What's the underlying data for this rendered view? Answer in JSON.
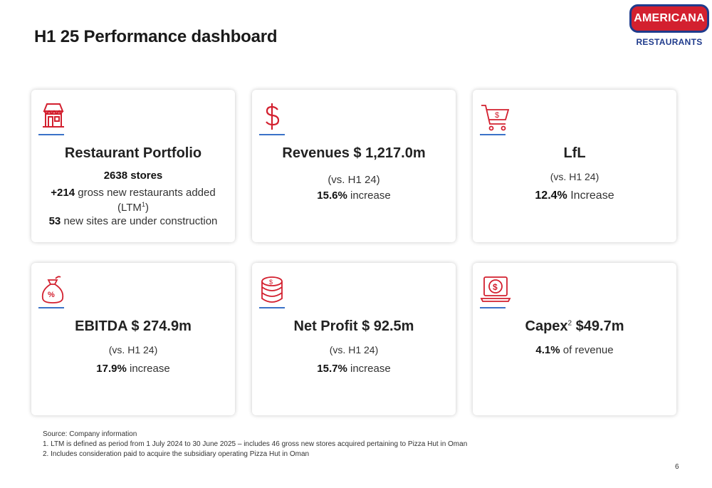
{
  "title": "H1 25 Performance dashboard",
  "logo": {
    "main": "AMERICANA",
    "sub": "RESTAURANTS"
  },
  "cards": [
    {
      "icon": "storefront-icon",
      "title": "Restaurant Portfolio",
      "line1_bold": "2638 stores",
      "line2_bold": "+214",
      "line2_rest": " gross new restaurants added",
      "line3": "(LTM",
      "line3_sup": "1",
      "line3_end": ")",
      "line4_bold": "53",
      "line4_rest": " new sites are under construction"
    },
    {
      "icon": "dollar-icon",
      "title": "Revenues $ 1,217.0m",
      "line1": "(vs. H1 24)",
      "line2_bold": "15.6%",
      "line2_rest": " increase"
    },
    {
      "icon": "shopping-cart-icon",
      "title": "LfL",
      "line1": "(vs. H1 24)",
      "line2_bold": "12.4%",
      "line2_rest": " Increase"
    },
    {
      "icon": "money-bag-icon",
      "title": "EBITDA $ 274.9m",
      "line1": "(vs. H1 24)",
      "line2_bold": "17.9%",
      "line2_rest": " increase"
    },
    {
      "icon": "coin-stack-icon",
      "title": "Net Profit $ 92.5m",
      "line1": "(vs. H1 24)",
      "line2_bold": "15.7%",
      "line2_rest": " increase"
    },
    {
      "icon": "laptop-dollar-icon",
      "title_a": "Capex",
      "title_sup": "2",
      "title_b": " $49.7m",
      "line1_bold": "4.1%",
      "line1_rest": " of revenue"
    }
  ],
  "footnotes": {
    "source": "Source: Company information",
    "note1": "1. LTM is defined as period from 1 July 2024 to 30 June 2025 – includes 46 gross new stores acquired pertaining to Pizza Hut in Oman",
    "note2": "2. Includes consideration paid to acquire the subsidiary operating Pizza Hut in Oman"
  },
  "page_number": "6",
  "colors": {
    "accent_red": "#d3202f",
    "accent_blue": "#3b72c8",
    "brand_navy": "#1f3b8c"
  }
}
